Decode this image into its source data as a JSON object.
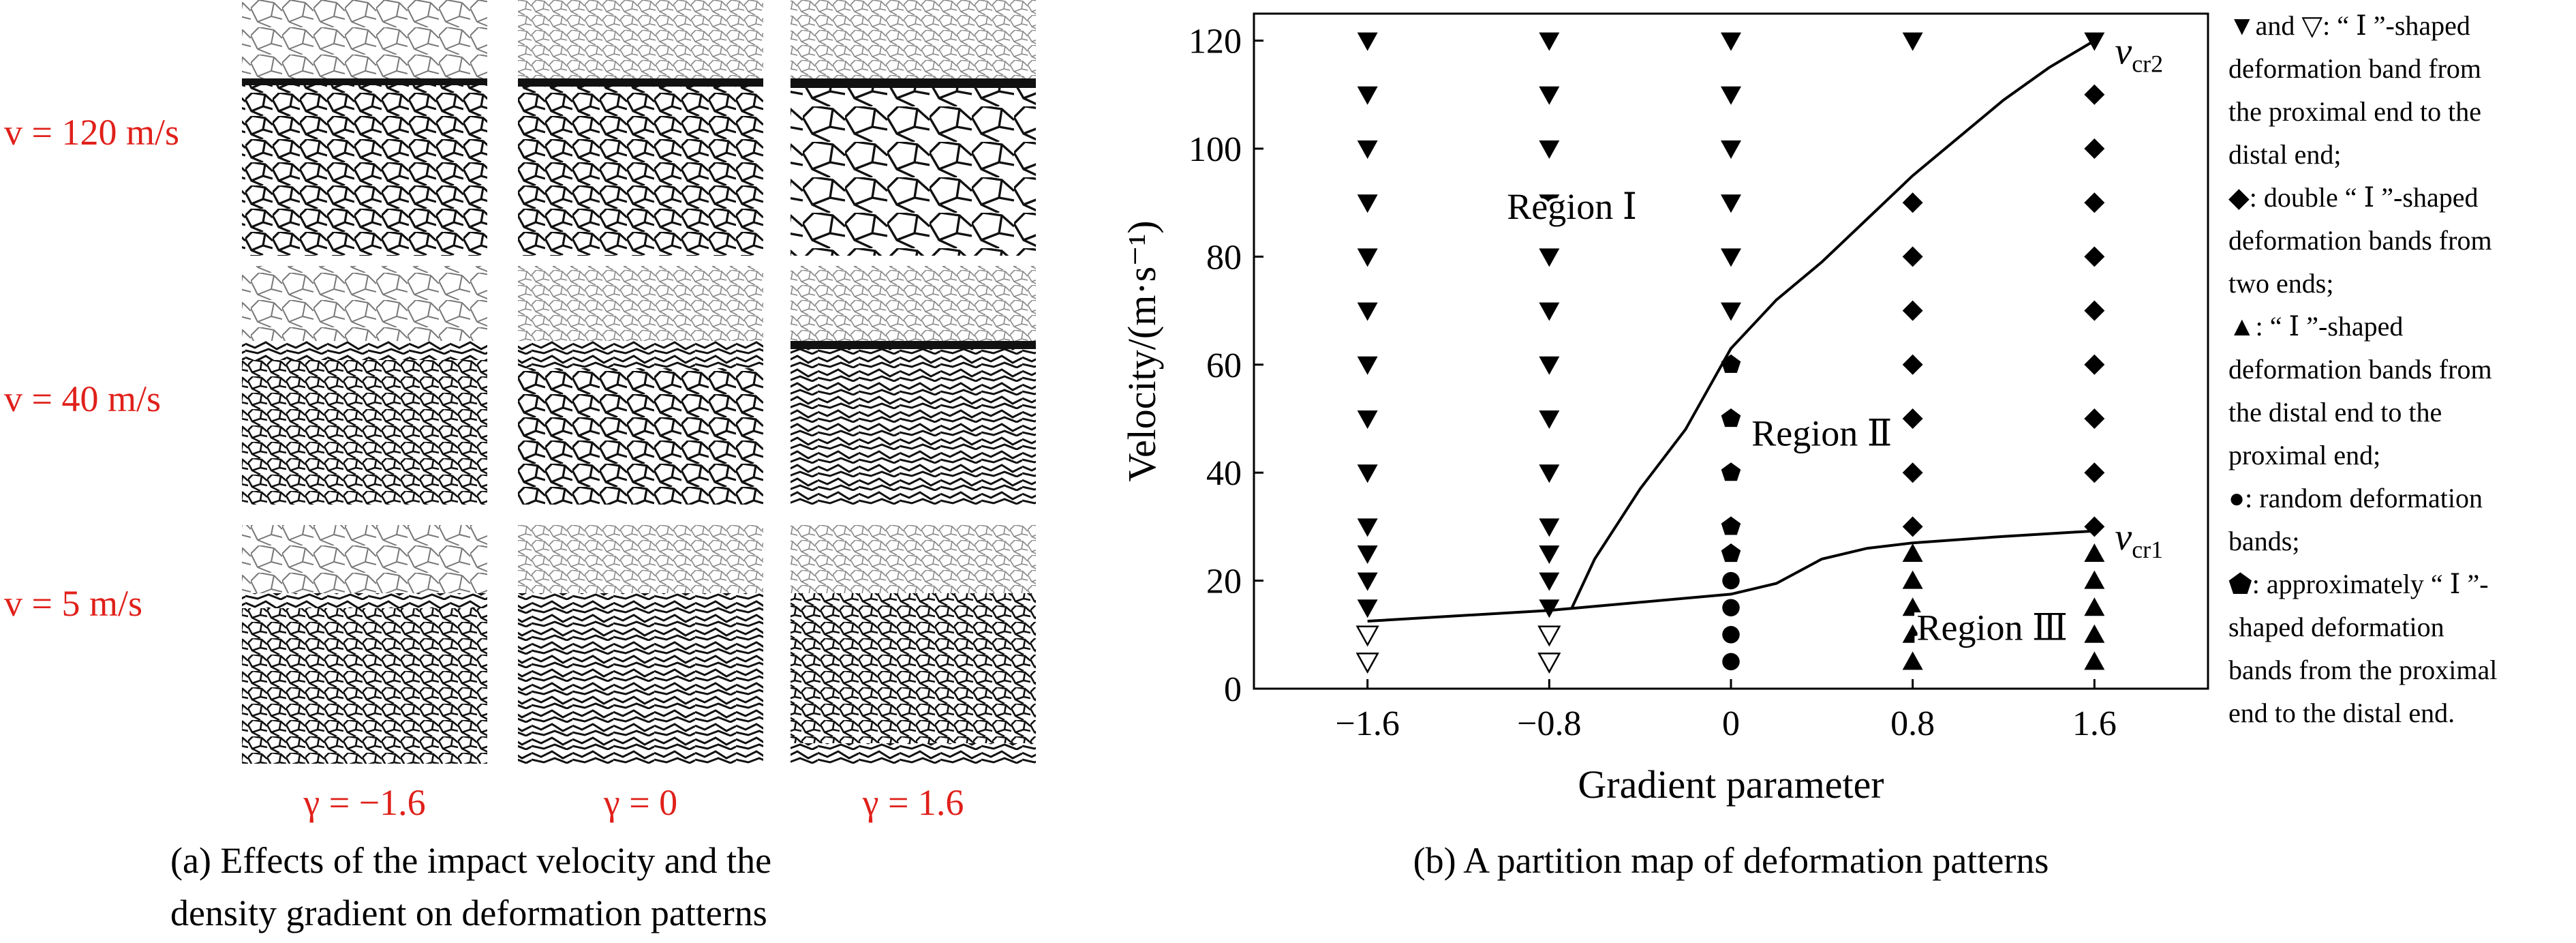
{
  "panel_a": {
    "velocity_labels": [
      "v = 120 m/s",
      "v = 40 m/s",
      "v = 5 m/s"
    ],
    "gamma_labels": [
      "γ = −1.6",
      "γ = 0",
      "γ = 1.6"
    ],
    "caption_line1": "(a) Effects of the impact velocity and the",
    "caption_line2": "density gradient on deformation patterns",
    "label_color": "#e0201a"
  },
  "panel_b": {
    "caption": "(b) A partition map of deformation patterns"
  },
  "legend": {
    "lines": [
      "▼and ▽: “ Ⅰ ”-shaped",
      "deformation band from",
      "the proximal end to the",
      "distal end;",
      "◆: double “ Ⅰ ”-shaped",
      "deformation bands from",
      "two ends;",
      "▲: “ Ⅰ ”-shaped",
      "deformation bands from",
      "the distal end to the",
      "proximal end;",
      "●: random deformation",
      "bands;",
      "⬟: approximately “ Ⅰ ”-",
      "shaped deformation",
      "bands from the proximal",
      "end to the distal end."
    ]
  },
  "chart_data": {
    "type": "scatter",
    "xlabel": "Gradient parameter",
    "ylabel": "Velocity/(m·s⁻¹)",
    "x_ticks": [
      "−1.6",
      "−0.8",
      "0",
      "0.8",
      "1.6"
    ],
    "y_ticks": [
      "0",
      "20",
      "40",
      "60",
      "80",
      "100",
      "120"
    ],
    "xlim": [
      -2.1,
      2.1
    ],
    "ylim": [
      0,
      125
    ],
    "grid": false,
    "region_labels": [
      {
        "text": "Region Ⅰ",
        "x": -0.7,
        "y": 87
      },
      {
        "text": "Region Ⅱ",
        "x": 0.4,
        "y": 45
      },
      {
        "text": "Region Ⅲ",
        "x": 1.15,
        "y": 9
      }
    ],
    "series": [
      {
        "marker": "triangle-down-filled",
        "points": [
          [
            -1.6,
            15
          ],
          [
            -1.6,
            20
          ],
          [
            -1.6,
            25
          ],
          [
            -1.6,
            30
          ],
          [
            -1.6,
            40
          ],
          [
            -1.6,
            50
          ],
          [
            -1.6,
            60
          ],
          [
            -1.6,
            70
          ],
          [
            -1.6,
            80
          ],
          [
            -1.6,
            90
          ],
          [
            -1.6,
            100
          ],
          [
            -1.6,
            110
          ],
          [
            -1.6,
            120
          ],
          [
            -0.8,
            15
          ],
          [
            -0.8,
            20
          ],
          [
            -0.8,
            25
          ],
          [
            -0.8,
            30
          ],
          [
            -0.8,
            40
          ],
          [
            -0.8,
            50
          ],
          [
            -0.8,
            60
          ],
          [
            -0.8,
            70
          ],
          [
            -0.8,
            80
          ],
          [
            -0.8,
            90
          ],
          [
            -0.8,
            100
          ],
          [
            -0.8,
            110
          ],
          [
            -0.8,
            120
          ],
          [
            0,
            70
          ],
          [
            0,
            80
          ],
          [
            0,
            90
          ],
          [
            0,
            100
          ],
          [
            0,
            110
          ],
          [
            0,
            120
          ],
          [
            0.8,
            120
          ],
          [
            1.6,
            120
          ]
        ]
      },
      {
        "marker": "triangle-down-open",
        "points": [
          [
            -1.6,
            5
          ],
          [
            -1.6,
            10
          ],
          [
            -0.8,
            5
          ],
          [
            -0.8,
            10
          ]
        ]
      },
      {
        "marker": "diamond-filled",
        "points": [
          [
            0.8,
            30
          ],
          [
            0.8,
            40
          ],
          [
            0.8,
            50
          ],
          [
            0.8,
            60
          ],
          [
            0.8,
            70
          ],
          [
            0.8,
            80
          ],
          [
            0.8,
            90
          ],
          [
            1.6,
            30
          ],
          [
            1.6,
            40
          ],
          [
            1.6,
            50
          ],
          [
            1.6,
            60
          ],
          [
            1.6,
            70
          ],
          [
            1.6,
            80
          ],
          [
            1.6,
            90
          ],
          [
            1.6,
            100
          ],
          [
            1.6,
            110
          ]
        ]
      },
      {
        "marker": "triangle-up-filled",
        "points": [
          [
            0.8,
            5
          ],
          [
            0.8,
            10
          ],
          [
            0.8,
            15
          ],
          [
            0.8,
            20
          ],
          [
            0.8,
            25
          ],
          [
            1.6,
            5
          ],
          [
            1.6,
            10
          ],
          [
            1.6,
            15
          ],
          [
            1.6,
            20
          ],
          [
            1.6,
            25
          ]
        ]
      },
      {
        "marker": "circle-filled",
        "points": [
          [
            0,
            5
          ],
          [
            0,
            10
          ],
          [
            0,
            15
          ],
          [
            0,
            20
          ]
        ]
      },
      {
        "marker": "pentagon-filled",
        "points": [
          [
            0,
            25
          ],
          [
            0,
            30
          ],
          [
            0,
            40
          ],
          [
            0,
            50
          ],
          [
            0,
            60
          ]
        ]
      }
    ],
    "curves": [
      {
        "label": "v_cr1",
        "points": [
          [
            -1.6,
            12.5
          ],
          [
            -0.8,
            14.5
          ],
          [
            0,
            17.5
          ],
          [
            0.2,
            19.5
          ],
          [
            0.4,
            24
          ],
          [
            0.6,
            26
          ],
          [
            0.8,
            27
          ],
          [
            1.2,
            28.2
          ],
          [
            1.6,
            29.2
          ]
        ]
      },
      {
        "label": "v_cr2",
        "points": [
          [
            -0.7,
            15
          ],
          [
            -0.6,
            24
          ],
          [
            -0.4,
            37
          ],
          [
            -0.2,
            48
          ],
          [
            0,
            63
          ],
          [
            0.2,
            72
          ],
          [
            0.4,
            79
          ],
          [
            0.6,
            87
          ],
          [
            0.8,
            95
          ],
          [
            1.0,
            102
          ],
          [
            1.2,
            109
          ],
          [
            1.4,
            115
          ],
          [
            1.6,
            120
          ]
        ]
      }
    ],
    "curve_labels": [
      {
        "main": "v",
        "sub": "cr2",
        "x": 1.75,
        "y": 118
      },
      {
        "main": "v",
        "sub": "cr1",
        "x": 1.75,
        "y": 28
      }
    ]
  }
}
